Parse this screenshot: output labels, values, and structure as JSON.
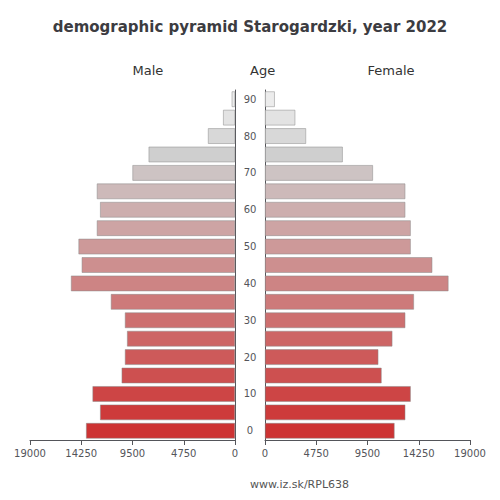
{
  "chart_data": {
    "type": "bar",
    "orientation": "horizontal",
    "title": "demographic pyramid Starogardzki, year 2022",
    "ylabel": "Age",
    "annotations": [
      "www.iz.sk/RPL638"
    ],
    "categories": [
      "0",
      null,
      "10",
      null,
      "20",
      null,
      "30",
      null,
      "40",
      null,
      "50",
      null,
      "60",
      null,
      "70",
      null,
      "80",
      null,
      "90"
    ],
    "series": [
      {
        "name": "Male",
        "values": [
          13800,
          12500,
          13200,
          10500,
          10200,
          10000,
          10200,
          11500,
          15200,
          14200,
          14500,
          12800,
          12500,
          12800,
          9500,
          8000,
          2500,
          1100,
          300
        ]
      },
      {
        "name": "Female",
        "values": [
          12000,
          13000,
          13500,
          10800,
          10500,
          11800,
          13000,
          13800,
          17000,
          15500,
          13500,
          13500,
          13000,
          13000,
          10000,
          7200,
          3800,
          2800,
          900
        ]
      }
    ],
    "colors": [
      "#cd3333",
      "#cd3b3b",
      "#cd4545",
      "#cd5050",
      "#cd5a5a",
      "#cd6565",
      "#cd6f6f",
      "#cd7a7a",
      "#cd8484",
      "#cd8f8f",
      "#cd9999",
      "#cda4a4",
      "#cdaeae",
      "#cdb9b9",
      "#cdc3c3",
      "#cfcfcf",
      "#d8d8d8",
      "#e3e3e3",
      "#ececec"
    ],
    "xlim": [
      0,
      19000
    ],
    "xticks": [
      0,
      4750,
      9500,
      14250,
      19000
    ],
    "grid": false
  }
}
